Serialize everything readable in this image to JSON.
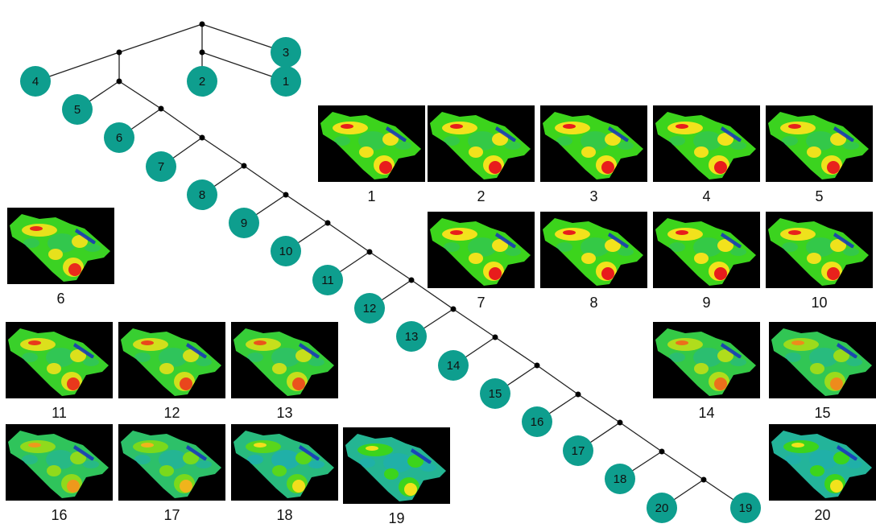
{
  "colors": {
    "node": "#0e9e8e",
    "edge": "#222222",
    "junction": "#000000",
    "map_hot": "#e81c1c",
    "map_warm": "#f2e21c",
    "map_green": "#3cd41c",
    "map_teal": "#20b0a8",
    "map_blue": "#1830c0"
  },
  "tree": {
    "leaves": [
      "1",
      "2",
      "3",
      "4",
      "5",
      "6",
      "7",
      "8",
      "9",
      "10",
      "11",
      "12",
      "13",
      "14",
      "15",
      "16",
      "17",
      "18",
      "19",
      "20"
    ]
  },
  "thumbnails": [
    {
      "caption": "1",
      "tint": 0.0
    },
    {
      "caption": "2",
      "tint": 0.0
    },
    {
      "caption": "3",
      "tint": 0.0
    },
    {
      "caption": "4",
      "tint": 0.0
    },
    {
      "caption": "5",
      "tint": 0.02
    },
    {
      "caption": "6",
      "tint": 0.05
    },
    {
      "caption": "7",
      "tint": 0.0
    },
    {
      "caption": "8",
      "tint": 0.0
    },
    {
      "caption": "9",
      "tint": 0.0
    },
    {
      "caption": "10",
      "tint": 0.02
    },
    {
      "caption": "11",
      "tint": 0.1
    },
    {
      "caption": "12",
      "tint": 0.15
    },
    {
      "caption": "13",
      "tint": 0.2
    },
    {
      "caption": "14",
      "tint": 0.3
    },
    {
      "caption": "15",
      "tint": 0.4
    },
    {
      "caption": "16",
      "tint": 0.45
    },
    {
      "caption": "17",
      "tint": 0.55
    },
    {
      "caption": "18",
      "tint": 0.7
    },
    {
      "caption": "19",
      "tint": 0.85
    },
    {
      "caption": "20",
      "tint": 0.9
    }
  ]
}
